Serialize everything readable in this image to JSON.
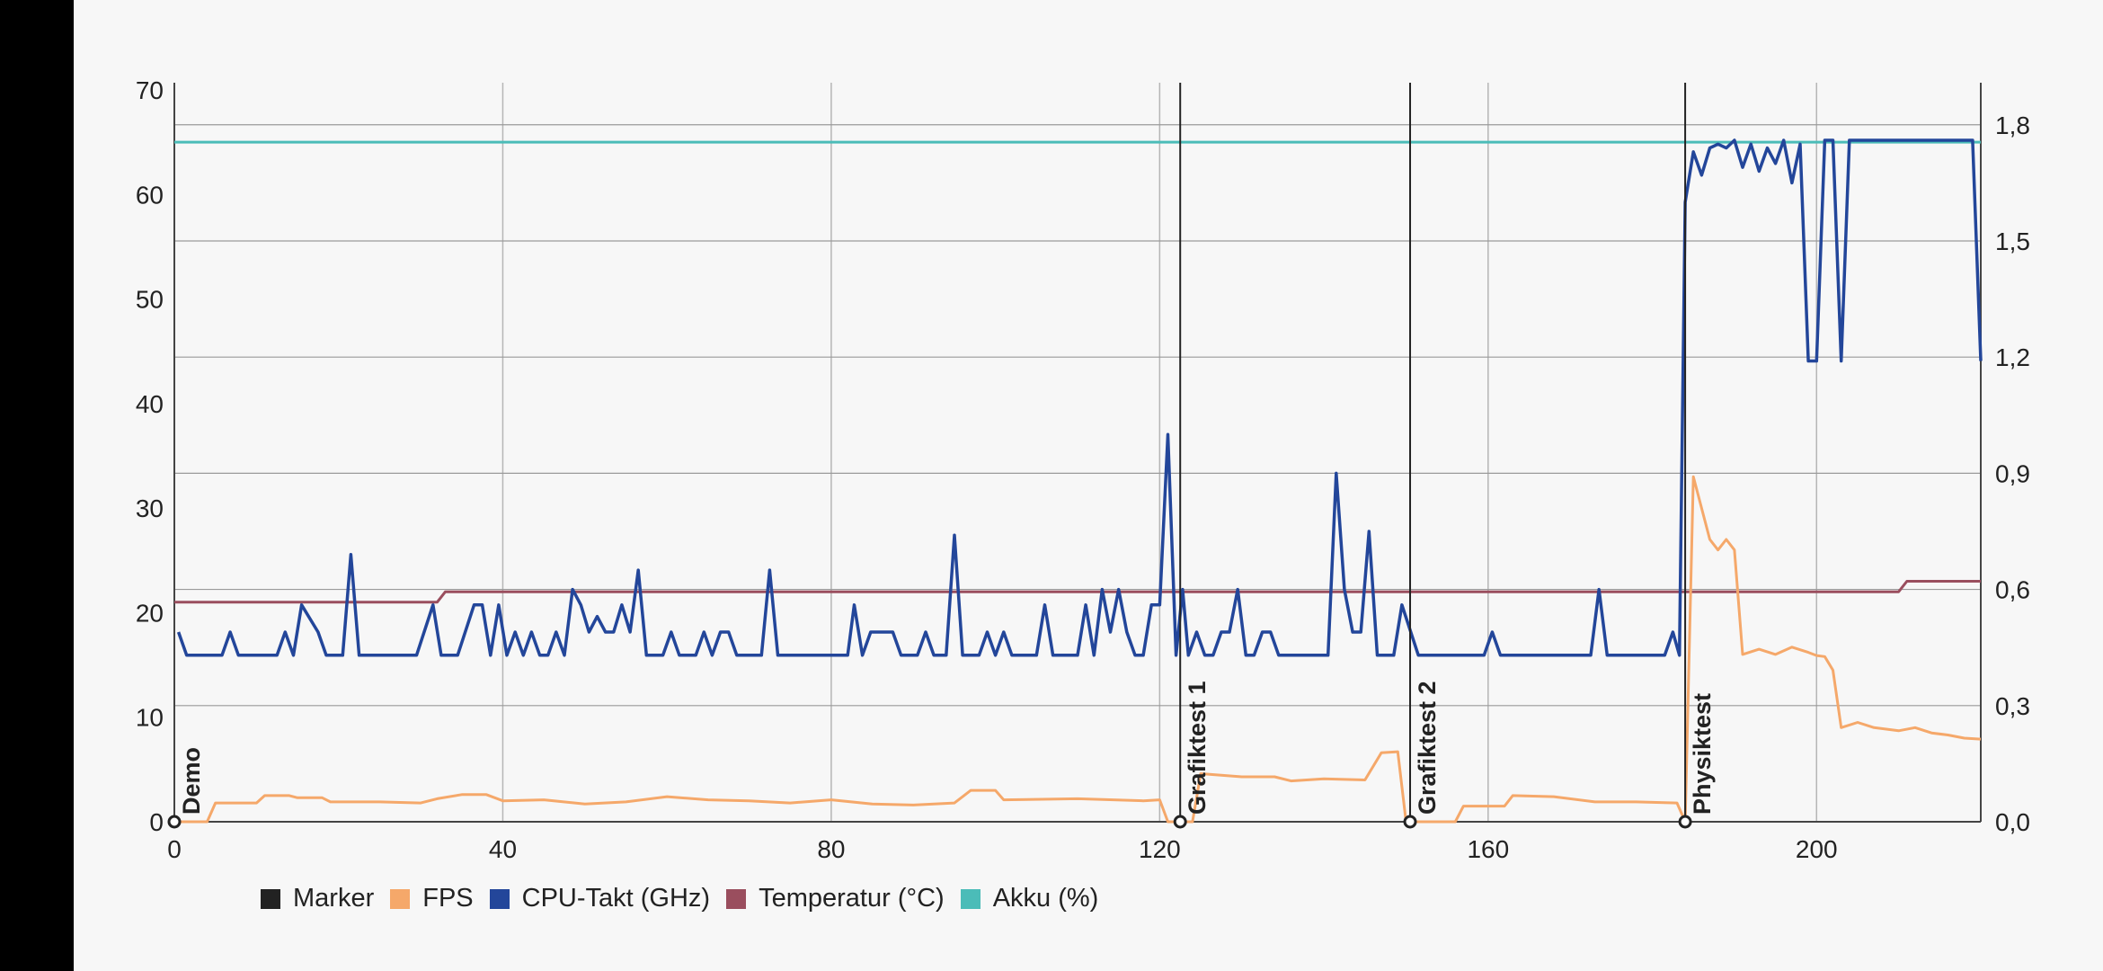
{
  "chart_data": {
    "type": "line",
    "xlim": [
      0,
      220
    ],
    "x_ticks": [
      "0",
      "40",
      "80",
      "120",
      "160",
      "200"
    ],
    "left_axis": {
      "ylim": [
        0,
        70
      ],
      "ticks": [
        "0",
        "10",
        "20",
        "30",
        "40",
        "50",
        "60",
        "70"
      ]
    },
    "right_axis": {
      "ylim": [
        0,
        1.89
      ],
      "ticks": [
        "0,0",
        "0,3",
        "0,6",
        "0,9",
        "1,2",
        "1,5",
        "1,8"
      ]
    },
    "legend": [
      {
        "name": "Marker",
        "color": "#222222"
      },
      {
        "name": "FPS",
        "color": "#f5a86a"
      },
      {
        "name": "CPU-Takt (GHz)",
        "color": "#23469a"
      },
      {
        "name": "Temperatur (°C)",
        "color": "#9a4e5e"
      },
      {
        "name": "Akku (%)",
        "color": "#4bbcb8"
      }
    ],
    "markers": [
      {
        "x": 0,
        "label": "Demo"
      },
      {
        "x": 122.5,
        "label": "Grafiktest 1"
      },
      {
        "x": 150.5,
        "label": "Grafiktest 2"
      },
      {
        "x": 184,
        "label": "Physiktest"
      }
    ],
    "series": [
      {
        "name": "Akku (%)",
        "axis": "left",
        "color": "#4bbcb8",
        "points": [
          [
            0,
            65
          ],
          [
            220,
            65
          ]
        ]
      },
      {
        "name": "Temperatur (°C)",
        "axis": "left",
        "color": "#9a4e5e",
        "points": [
          [
            0,
            21
          ],
          [
            32,
            21
          ],
          [
            33,
            22
          ],
          [
            210,
            22
          ],
          [
            211,
            23
          ],
          [
            220,
            23
          ]
        ]
      },
      {
        "name": "FPS",
        "axis": "left",
        "color": "#f5a86a",
        "points": [
          [
            0,
            0
          ],
          [
            4,
            0
          ],
          [
            5,
            1.8
          ],
          [
            10,
            1.8
          ],
          [
            11,
            2.5
          ],
          [
            14,
            2.5
          ],
          [
            15,
            2.3
          ],
          [
            18,
            2.3
          ],
          [
            19,
            1.9
          ],
          [
            25,
            1.9
          ],
          [
            30,
            1.8
          ],
          [
            32,
            2.2
          ],
          [
            35,
            2.6
          ],
          [
            38,
            2.6
          ],
          [
            40,
            2.0
          ],
          [
            45,
            2.1
          ],
          [
            50,
            1.7
          ],
          [
            55,
            1.9
          ],
          [
            60,
            2.4
          ],
          [
            65,
            2.1
          ],
          [
            70,
            2.0
          ],
          [
            75,
            1.8
          ],
          [
            80,
            2.1
          ],
          [
            85,
            1.7
          ],
          [
            90,
            1.6
          ],
          [
            95,
            1.8
          ],
          [
            97,
            3.0
          ],
          [
            100,
            3.0
          ],
          [
            101,
            2.1
          ],
          [
            110,
            2.2
          ],
          [
            118,
            2.0
          ],
          [
            120,
            2.1
          ],
          [
            121,
            0
          ],
          [
            124,
            0
          ],
          [
            125,
            4.6
          ],
          [
            130,
            4.3
          ],
          [
            134,
            4.3
          ],
          [
            136,
            3.9
          ],
          [
            140,
            4.1
          ],
          [
            145,
            4.0
          ],
          [
            147,
            6.6
          ],
          [
            149,
            6.7
          ],
          [
            150,
            0
          ],
          [
            156,
            0
          ],
          [
            157,
            1.5
          ],
          [
            162,
            1.5
          ],
          [
            163,
            2.5
          ],
          [
            168,
            2.4
          ],
          [
            173,
            1.9
          ],
          [
            178,
            1.9
          ],
          [
            183,
            1.8
          ],
          [
            184,
            0
          ],
          [
            185,
            33
          ],
          [
            187,
            27
          ],
          [
            188,
            26
          ],
          [
            189,
            27
          ],
          [
            190,
            26
          ],
          [
            191,
            16
          ],
          [
            193,
            16.5
          ],
          [
            195,
            16
          ],
          [
            197,
            16.7
          ],
          [
            199,
            16.2
          ],
          [
            200,
            15.9
          ],
          [
            201,
            15.8
          ],
          [
            202,
            14.5
          ],
          [
            203,
            9
          ],
          [
            205,
            9.5
          ],
          [
            207,
            9
          ],
          [
            210,
            8.7
          ],
          [
            212,
            9
          ],
          [
            214,
            8.5
          ],
          [
            216,
            8.3
          ],
          [
            218,
            8.0
          ],
          [
            220,
            7.9
          ]
        ]
      },
      {
        "name": "CPU-Takt (GHz)",
        "axis": "right",
        "color": "#23469a",
        "points": [
          [
            0.5,
            0.49
          ],
          [
            1.5,
            0.43
          ],
          [
            4,
            0.43
          ],
          [
            5.8,
            0.43
          ],
          [
            6.8,
            0.49
          ],
          [
            7.8,
            0.43
          ],
          [
            10,
            0.43
          ],
          [
            12.5,
            0.43
          ],
          [
            13.5,
            0.49
          ],
          [
            14.5,
            0.43
          ],
          [
            15.5,
            0.56
          ],
          [
            17.5,
            0.49
          ],
          [
            18.5,
            0.43
          ],
          [
            19.5,
            0.43
          ],
          [
            20.5,
            0.43
          ],
          [
            21.5,
            0.69
          ],
          [
            22.5,
            0.43
          ],
          [
            29.5,
            0.43
          ],
          [
            31.5,
            0.56
          ],
          [
            32.5,
            0.43
          ],
          [
            34.5,
            0.43
          ],
          [
            36.5,
            0.56
          ],
          [
            37.5,
            0.56
          ],
          [
            38.5,
            0.43
          ],
          [
            39.5,
            0.56
          ],
          [
            40.5,
            0.43
          ],
          [
            41.5,
            0.49
          ],
          [
            42.5,
            0.43
          ],
          [
            43.5,
            0.49
          ],
          [
            44.5,
            0.43
          ],
          [
            45.5,
            0.43
          ],
          [
            46.5,
            0.49
          ],
          [
            47.5,
            0.43
          ],
          [
            48.5,
            0.6
          ],
          [
            49.5,
            0.56
          ],
          [
            50.5,
            0.49
          ],
          [
            51.5,
            0.53
          ],
          [
            52.5,
            0.49
          ],
          [
            53.5,
            0.49
          ],
          [
            54.5,
            0.56
          ],
          [
            55.5,
            0.49
          ],
          [
            56.5,
            0.65
          ],
          [
            57.5,
            0.43
          ],
          [
            59.5,
            0.43
          ],
          [
            60.5,
            0.49
          ],
          [
            61.5,
            0.43
          ],
          [
            63.5,
            0.43
          ],
          [
            64.5,
            0.49
          ],
          [
            65.5,
            0.43
          ],
          [
            66.5,
            0.49
          ],
          [
            67.5,
            0.49
          ],
          [
            68.5,
            0.43
          ],
          [
            71.5,
            0.43
          ],
          [
            72.5,
            0.65
          ],
          [
            73.5,
            0.43
          ],
          [
            82,
            0.43
          ],
          [
            82.8,
            0.56
          ],
          [
            83.8,
            0.43
          ],
          [
            84.8,
            0.49
          ],
          [
            87.5,
            0.49
          ],
          [
            88.5,
            0.43
          ],
          [
            90.5,
            0.43
          ],
          [
            91.5,
            0.49
          ],
          [
            92.5,
            0.43
          ],
          [
            94,
            0.43
          ],
          [
            95,
            0.74
          ],
          [
            96,
            0.43
          ],
          [
            98,
            0.43
          ],
          [
            99,
            0.49
          ],
          [
            100,
            0.43
          ],
          [
            101,
            0.49
          ],
          [
            102,
            0.43
          ],
          [
            105,
            0.43
          ],
          [
            106,
            0.56
          ],
          [
            107,
            0.43
          ],
          [
            109,
            0.43
          ],
          [
            110,
            0.43
          ],
          [
            111,
            0.56
          ],
          [
            112,
            0.43
          ],
          [
            113,
            0.6
          ],
          [
            114,
            0.49
          ],
          [
            115,
            0.6
          ],
          [
            116,
            0.49
          ],
          [
            117,
            0.43
          ],
          [
            118,
            0.43
          ],
          [
            119,
            0.56
          ],
          [
            120,
            0.56
          ],
          [
            121,
            1.0
          ],
          [
            122,
            0.43
          ],
          [
            122.8,
            0.6
          ],
          [
            123.5,
            0.43
          ],
          [
            124.5,
            0.49
          ],
          [
            125.5,
            0.43
          ],
          [
            126.5,
            0.43
          ],
          [
            127.5,
            0.49
          ],
          [
            128.5,
            0.49
          ],
          [
            129.5,
            0.6
          ],
          [
            130.5,
            0.43
          ],
          [
            131.5,
            0.43
          ],
          [
            132.5,
            0.49
          ],
          [
            133.5,
            0.49
          ],
          [
            134.5,
            0.43
          ],
          [
            140.5,
            0.43
          ],
          [
            141.5,
            0.9
          ],
          [
            142.5,
            0.6
          ],
          [
            143.5,
            0.49
          ],
          [
            144.5,
            0.49
          ],
          [
            145.5,
            0.75
          ],
          [
            146.5,
            0.43
          ],
          [
            148.5,
            0.43
          ],
          [
            149.5,
            0.56
          ],
          [
            151.5,
            0.43
          ],
          [
            159.5,
            0.43
          ],
          [
            160.5,
            0.49
          ],
          [
            161.5,
            0.43
          ],
          [
            172.5,
            0.43
          ],
          [
            173.5,
            0.6
          ],
          [
            174.5,
            0.43
          ],
          [
            181.5,
            0.43
          ],
          [
            182.5,
            0.49
          ],
          [
            183.3,
            0.43
          ],
          [
            184,
            1.6
          ],
          [
            185,
            1.73
          ],
          [
            186,
            1.67
          ],
          [
            187,
            1.74
          ],
          [
            188,
            1.75
          ],
          [
            189,
            1.74
          ],
          [
            190,
            1.76
          ],
          [
            191,
            1.69
          ],
          [
            192,
            1.75
          ],
          [
            193,
            1.68
          ],
          [
            194,
            1.74
          ],
          [
            195,
            1.7
          ],
          [
            196,
            1.76
          ],
          [
            197,
            1.65
          ],
          [
            198,
            1.75
          ],
          [
            199,
            1.19
          ],
          [
            200,
            1.19
          ],
          [
            201,
            1.76
          ],
          [
            202,
            1.76
          ],
          [
            203,
            1.19
          ],
          [
            204,
            1.76
          ],
          [
            212,
            1.76
          ],
          [
            219,
            1.76
          ],
          [
            220,
            1.19
          ]
        ]
      }
    ]
  }
}
